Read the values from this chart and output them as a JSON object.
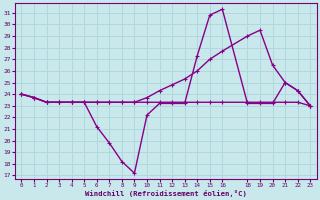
{
  "xlabel": "Windchill (Refroidissement éolien,°C)",
  "bg_color": "#c8e8ec",
  "grid_color": "#b0d8dc",
  "line_color": "#880088",
  "xlim": [
    -0.5,
    23.5
  ],
  "ylim": [
    16.7,
    31.8
  ],
  "yticks": [
    17,
    18,
    19,
    20,
    21,
    22,
    23,
    24,
    25,
    26,
    27,
    28,
    29,
    30,
    31
  ],
  "xticks": [
    0,
    1,
    2,
    3,
    4,
    5,
    6,
    7,
    8,
    9,
    10,
    11,
    12,
    13,
    14,
    15,
    16,
    18,
    19,
    20,
    21,
    22,
    23
  ],
  "line1_x": [
    0,
    1,
    2,
    3,
    4,
    5,
    6,
    7,
    8,
    9,
    10,
    11,
    12,
    13,
    14,
    15,
    16,
    18,
    19,
    20,
    21,
    22,
    23
  ],
  "line1_y": [
    24,
    23.7,
    23.3,
    23.3,
    23.3,
    23.3,
    21.2,
    19.8,
    18.2,
    17.2,
    22.2,
    23.2,
    23.2,
    23.2,
    27.3,
    30.8,
    31.3,
    23.2,
    23.2,
    23.2,
    25.0,
    24.3,
    23.0
  ],
  "line2_x": [
    0,
    1,
    2,
    3,
    4,
    5,
    6,
    7,
    8,
    9,
    10,
    11,
    12,
    13,
    14,
    15,
    16,
    18,
    19,
    20,
    21,
    22,
    23
  ],
  "line2_y": [
    24,
    23.7,
    23.3,
    23.3,
    23.3,
    23.3,
    23.3,
    23.3,
    23.3,
    23.3,
    23.7,
    24.3,
    24.8,
    25.3,
    26.0,
    27.0,
    27.7,
    29.0,
    29.5,
    26.5,
    25.0,
    24.3,
    23.0
  ],
  "line3_x": [
    0,
    1,
    2,
    3,
    4,
    5,
    6,
    7,
    8,
    9,
    10,
    11,
    12,
    13,
    14,
    15,
    16,
    18,
    19,
    20,
    21,
    22,
    23
  ],
  "line3_y": [
    24,
    23.7,
    23.3,
    23.3,
    23.3,
    23.3,
    23.3,
    23.3,
    23.3,
    23.3,
    23.3,
    23.3,
    23.3,
    23.3,
    23.3,
    23.3,
    23.3,
    23.3,
    23.3,
    23.3,
    23.3,
    23.3,
    23.0
  ]
}
